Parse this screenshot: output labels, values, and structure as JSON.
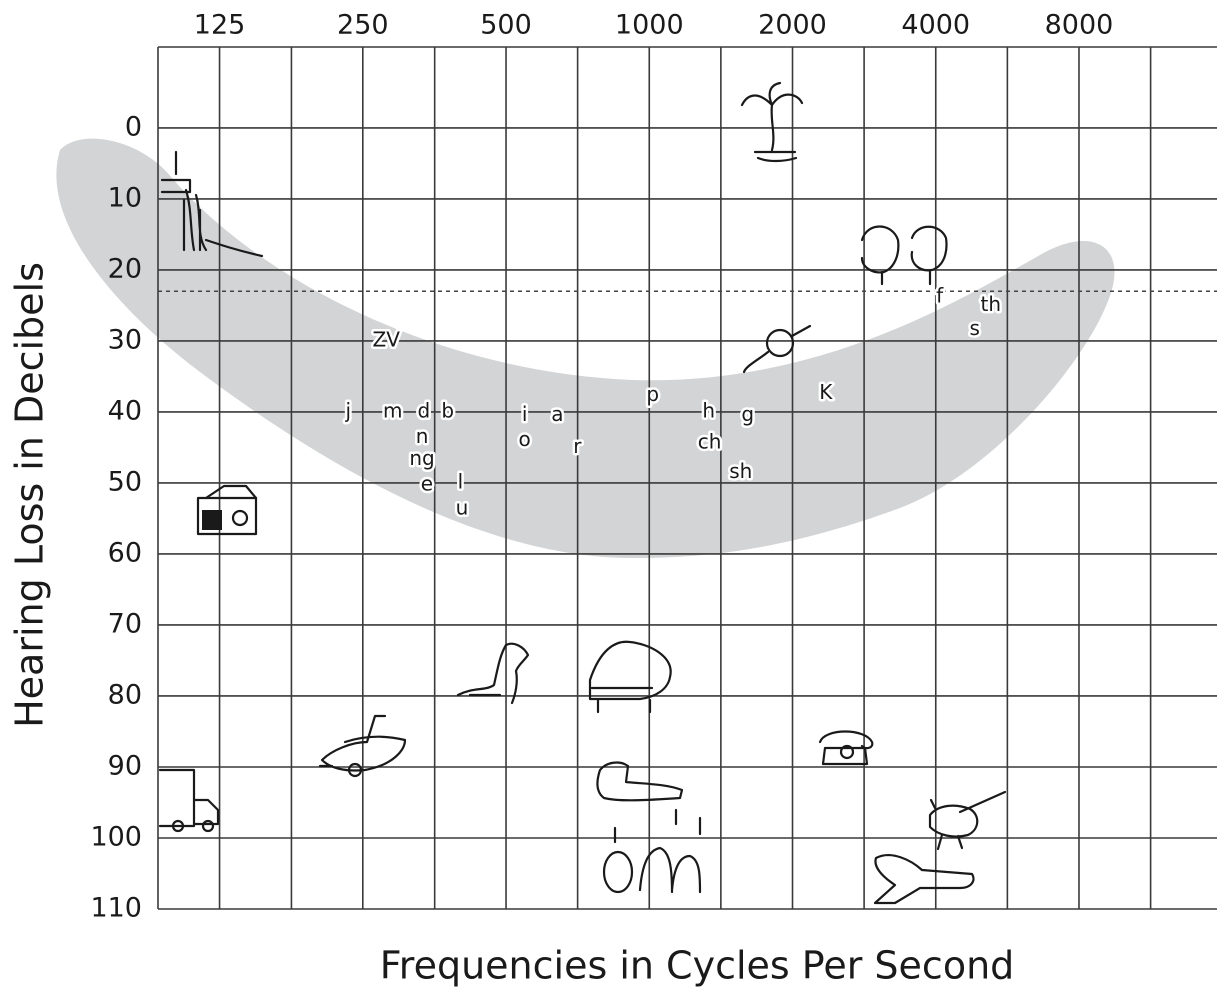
{
  "chart_data": {
    "type": "scatter",
    "x_label": "Frequencies in Cycles Per Second",
    "y_label": "Hearing Loss in Decibels",
    "xscale": "log",
    "xaxis_position": "top",
    "xlim": [
      92.8,
      15450
    ],
    "xticks": [
      125,
      250,
      500,
      1000,
      2000,
      4000,
      8000
    ],
    "xminorticks": [
      177,
      354,
      707,
      1414,
      2828,
      5657,
      11314
    ],
    "ylim": [
      -11.4,
      110
    ],
    "y_inverted": true,
    "yticks": [
      0,
      10,
      20,
      30,
      40,
      50,
      60,
      70,
      80,
      90,
      100,
      110
    ],
    "grid": true,
    "band_color": "#d3d4d5",
    "reference_line": {
      "value": 23,
      "style": "dashed"
    },
    "points": [
      {
        "label": "ZV",
        "x": 280,
        "y": 30
      },
      {
        "label": "j",
        "x": 233,
        "y": 40
      },
      {
        "label": "m",
        "x": 289,
        "y": 40
      },
      {
        "label": "d",
        "x": 336,
        "y": 40
      },
      {
        "label": "b",
        "x": 377,
        "y": 40
      },
      {
        "label": "n",
        "x": 333,
        "y": 43.6
      },
      {
        "label": "ng",
        "x": 333,
        "y": 46.7
      },
      {
        "label": "e",
        "x": 341,
        "y": 50.3
      },
      {
        "label": "l",
        "x": 401,
        "y": 50
      },
      {
        "label": "u",
        "x": 404,
        "y": 53.7
      },
      {
        "label": "i",
        "x": 547,
        "y": 40.5
      },
      {
        "label": "o",
        "x": 547,
        "y": 44
      },
      {
        "label": "a",
        "x": 641,
        "y": 40.5
      },
      {
        "label": "r",
        "x": 706,
        "y": 45
      },
      {
        "label": "p",
        "x": 1017,
        "y": 37.7
      },
      {
        "label": "h",
        "x": 1333,
        "y": 40
      },
      {
        "label": "ch",
        "x": 1339,
        "y": 44.4
      },
      {
        "label": "g",
        "x": 1610,
        "y": 40.5
      },
      {
        "label": "sh",
        "x": 1557,
        "y": 48.5
      },
      {
        "label": "K",
        "x": 2350,
        "y": 37.4
      },
      {
        "label": "f",
        "x": 4077,
        "y": 23.8
      },
      {
        "label": "th",
        "x": 5220,
        "y": 25
      },
      {
        "label": "s",
        "x": 4830,
        "y": 28.4
      }
    ]
  }
}
